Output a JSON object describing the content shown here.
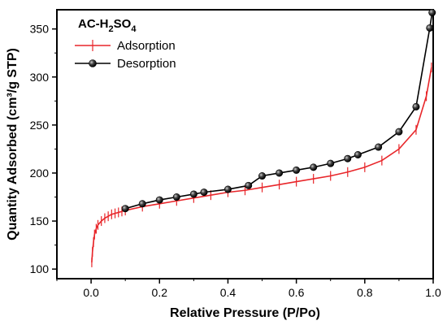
{
  "chart_data": {
    "type": "line",
    "title": "",
    "xlabel": "Relative Pressure (P/Po)",
    "ylabel": "Quantity Adsorbed (cm³/g STP)",
    "xlim": [
      -0.1,
      1.0
    ],
    "ylim": [
      90,
      370
    ],
    "x_ticks": [
      0.0,
      0.2,
      0.4,
      0.6,
      0.8,
      1.0
    ],
    "x_tick_labels": [
      "0.0",
      "0.2",
      "0.4",
      "0.6",
      "0.8",
      "1.0"
    ],
    "y_ticks": [
      100,
      150,
      200,
      250,
      300,
      350
    ],
    "y_tick_labels": [
      "100",
      "150",
      "200",
      "250",
      "300",
      "350"
    ],
    "grid": false,
    "legend": {
      "placement": "top-left",
      "title_parts": {
        "main": "AC-H",
        "sub1": "2",
        "mid": "SO",
        "sub2": "4"
      }
    },
    "series": [
      {
        "name": "Adsorption",
        "color": "#e8262a",
        "marker": "vertical-tick",
        "x": [
          0.002,
          0.004,
          0.007,
          0.01,
          0.015,
          0.02,
          0.03,
          0.04,
          0.05,
          0.06,
          0.07,
          0.08,
          0.09,
          0.1,
          0.15,
          0.2,
          0.25,
          0.3,
          0.35,
          0.4,
          0.45,
          0.5,
          0.55,
          0.6,
          0.65,
          0.7,
          0.75,
          0.8,
          0.85,
          0.9,
          0.95,
          0.98,
          0.995
        ],
        "y": [
          107,
          118,
          128,
          136,
          142,
          146,
          150,
          153,
          155,
          157,
          158,
          159,
          160,
          161,
          165,
          168,
          171,
          174,
          177,
          180,
          182,
          185,
          188,
          191,
          194,
          197,
          201,
          206,
          213,
          225,
          245,
          280,
          310
        ]
      },
      {
        "name": "Desorption",
        "color": "#000000",
        "marker": "sphere",
        "x": [
          0.1,
          0.15,
          0.2,
          0.25,
          0.3,
          0.33,
          0.4,
          0.46,
          0.5,
          0.55,
          0.6,
          0.65,
          0.7,
          0.75,
          0.78,
          0.84,
          0.9,
          0.95,
          0.99,
          0.997
        ],
        "y": [
          163,
          168,
          172,
          175,
          178,
          180,
          183,
          187,
          197,
          200,
          203,
          206,
          210,
          215,
          219,
          227,
          243,
          269,
          351,
          367
        ]
      }
    ]
  }
}
